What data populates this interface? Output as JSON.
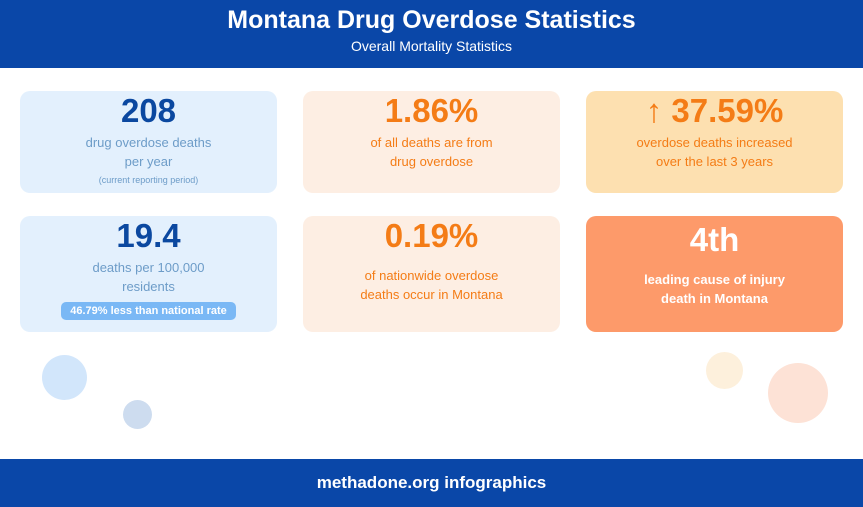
{
  "header": {
    "title": "Montana Drug Overdose Statistics",
    "subtitle": "Overall Mortality Statistics"
  },
  "cards": [
    {
      "value": "208",
      "lines": [
        "drug overdose deaths",
        "per year"
      ],
      "note": "(current reporting period)"
    },
    {
      "value": "1.86%",
      "lines": [
        "of all deaths are from",
        "drug overdose"
      ]
    },
    {
      "value": "↑ 37.59%",
      "lines": [
        "overdose deaths increased",
        "over the last 3 years"
      ]
    },
    {
      "value": "19.4",
      "lines": [
        "deaths per 100,000",
        "residents"
      ],
      "badge": "46.79% less than national rate"
    },
    {
      "value": "0.19%",
      "lines": [
        "of nationwide overdose",
        "deaths occur in Montana"
      ]
    },
    {
      "value": "4th",
      "lines": [
        "leading cause of injury",
        "death in Montana"
      ]
    }
  ],
  "footer": {
    "text": "methadone.org infographics"
  }
}
